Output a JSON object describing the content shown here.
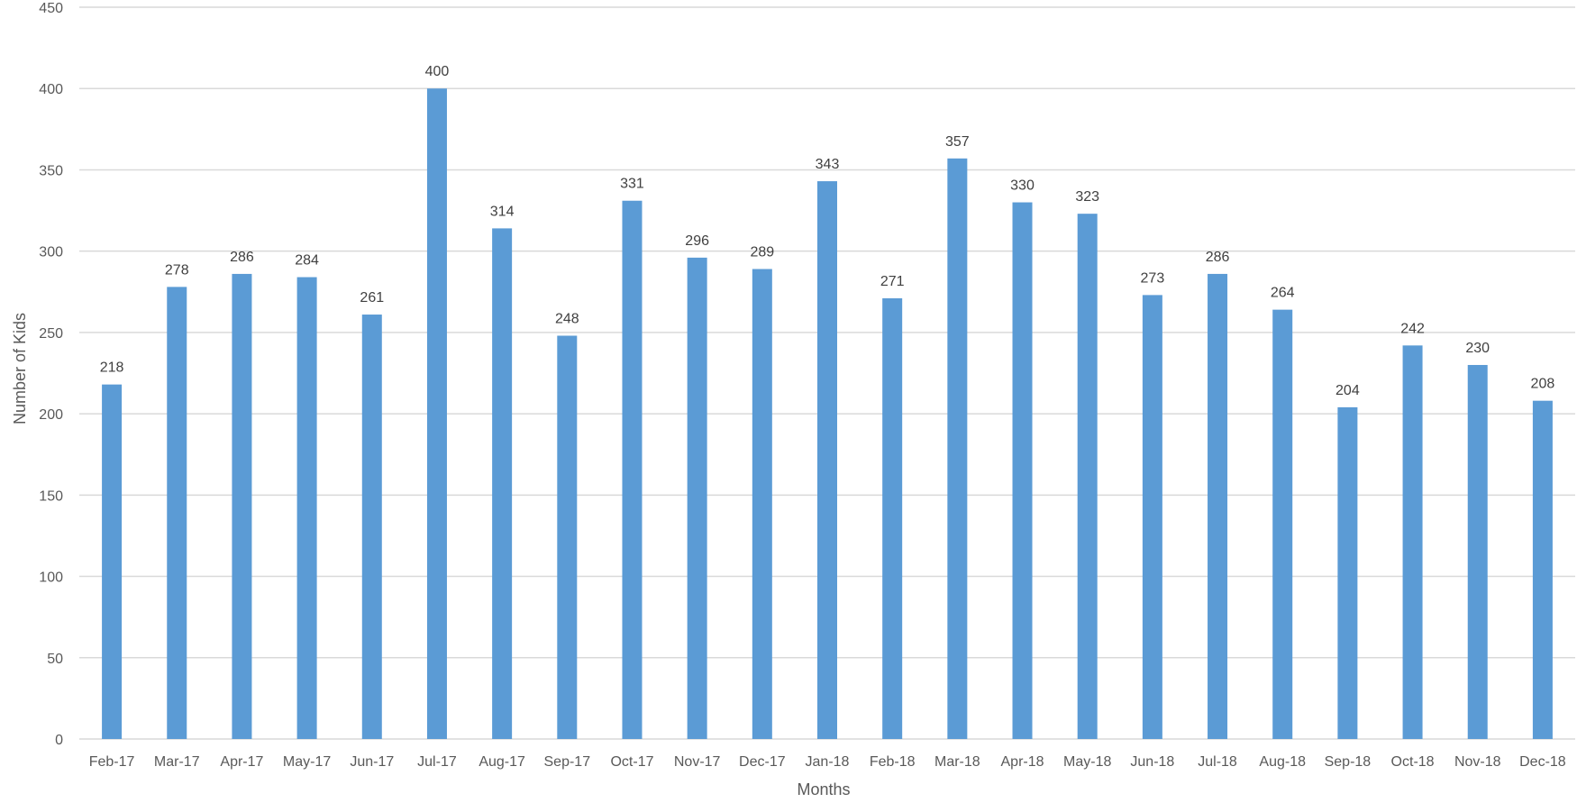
{
  "chart_data": {
    "type": "bar",
    "categories": [
      "Feb-17",
      "Mar-17",
      "Apr-17",
      "May-17",
      "Jun-17",
      "Jul-17",
      "Aug-17",
      "Sep-17",
      "Oct-17",
      "Nov-17",
      "Dec-17",
      "Jan-18",
      "Feb-18",
      "Mar-18",
      "Apr-18",
      "May-18",
      "Jun-18",
      "Jul-18",
      "Aug-18",
      "Sep-18",
      "Oct-18",
      "Nov-18",
      "Dec-18"
    ],
    "values": [
      218,
      278,
      286,
      284,
      261,
      400,
      314,
      248,
      331,
      296,
      289,
      343,
      271,
      357,
      330,
      323,
      273,
      286,
      264,
      204,
      242,
      230,
      208
    ],
    "title": "",
    "xlabel": "Months",
    "ylabel": "Number of Kids",
    "ylim": [
      0,
      450
    ],
    "yticks": [
      0,
      50,
      100,
      150,
      200,
      250,
      300,
      350,
      400,
      450
    ],
    "grid": true,
    "data_labels": true,
    "bar_color": "#5b9bd5"
  }
}
